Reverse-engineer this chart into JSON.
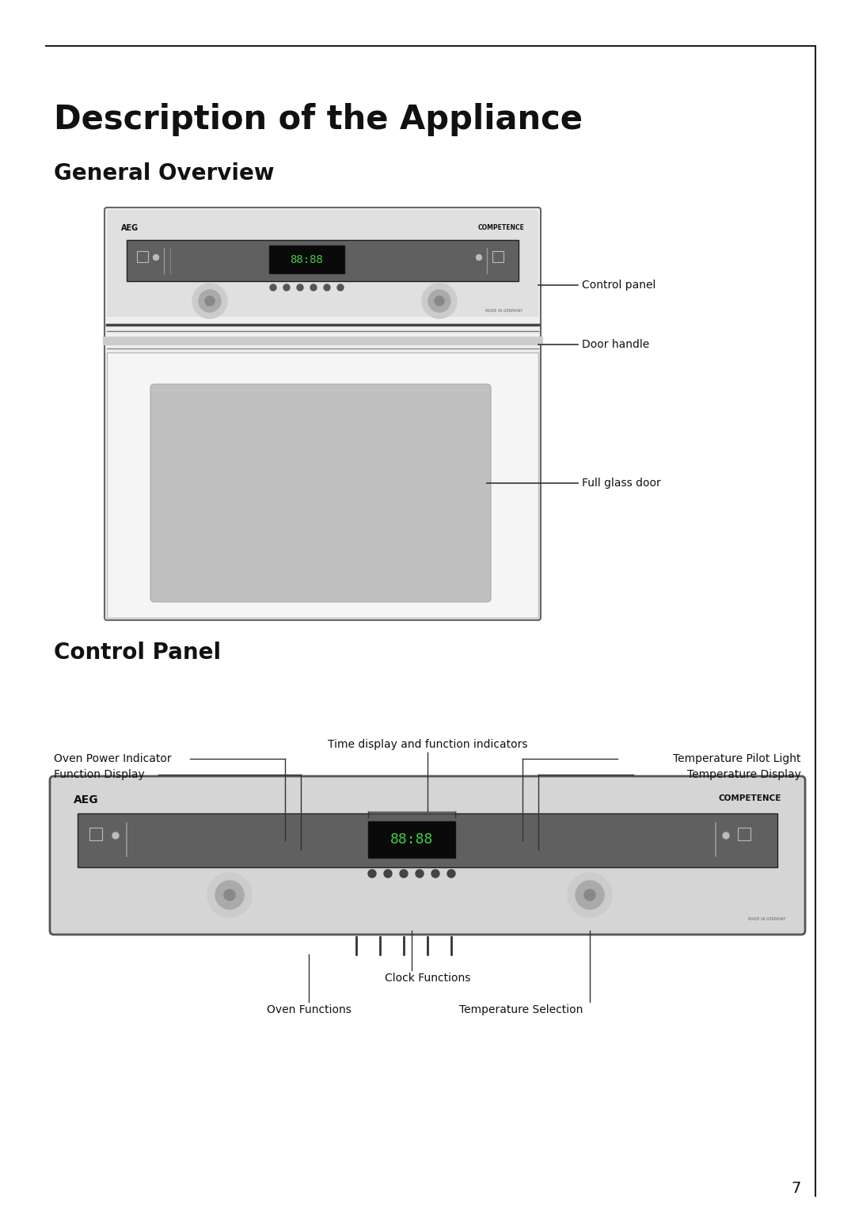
{
  "title": "Description of the Appliance",
  "subtitle1": "General Overview",
  "subtitle2": "Control Panel",
  "bg_color": "#ffffff",
  "page_number": "7",
  "title_fontsize": 30,
  "subtitle_fontsize": 20,
  "label_fontsize": 10
}
